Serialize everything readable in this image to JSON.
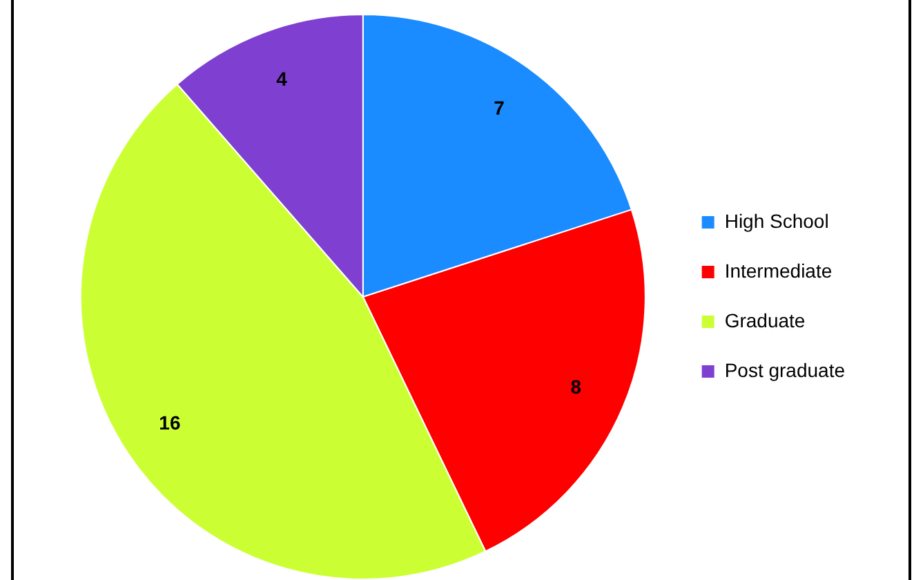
{
  "chart_data": {
    "type": "pie",
    "categories": [
      "High School",
      "Intermediate",
      "Graduate",
      "Post graduate"
    ],
    "values": [
      7,
      8,
      16,
      4
    ],
    "colors": [
      "#1a8cff",
      "#ff0000",
      "#ccff33",
      "#7f3fd0"
    ],
    "data_labels": true,
    "legend": "right"
  }
}
